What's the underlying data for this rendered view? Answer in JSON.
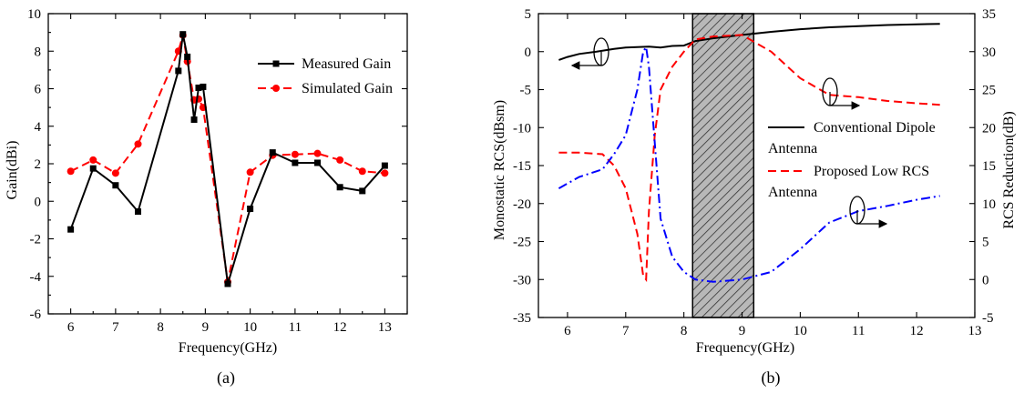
{
  "figure": {
    "panel_a_label": "(a)",
    "panel_b_label": "(b)"
  },
  "colors": {
    "measured": "#000000",
    "simulated": "#ff0000",
    "conventional": "#000000",
    "proposed": "#ff0000",
    "reduction": "#0000ff",
    "hatch_band": "#bdbdbd"
  },
  "chart_data": [
    {
      "type": "line",
      "panel": "(a)",
      "xlabel": "Frequency(GHz)",
      "ylabel": "Gain(dBi)",
      "xlim": [
        5.5,
        13.5
      ],
      "ylim": [
        -6,
        10
      ],
      "xticks": [
        "6",
        "7",
        "8",
        "9",
        "10",
        "11",
        "12",
        "13"
      ],
      "yticks": [
        "-6",
        "-4",
        "-2",
        "0",
        "2",
        "4",
        "6",
        "8",
        "10"
      ],
      "grid": false,
      "legend": "top-right",
      "series": [
        {
          "name": "Measured Gain",
          "marker": "square",
          "style": "solid",
          "x": [
            6,
            6.5,
            7,
            7.5,
            8.4,
            8.5,
            8.6,
            8.75,
            8.85,
            8.95,
            9.5,
            10,
            10.5,
            11,
            11.5,
            12,
            12.5,
            13
          ],
          "y": [
            -1.5,
            1.75,
            0.85,
            -0.55,
            6.95,
            8.9,
            7.7,
            4.35,
            6.05,
            6.1,
            -4.4,
            -0.4,
            2.6,
            2.05,
            2.05,
            0.75,
            0.55,
            1.9
          ]
        },
        {
          "name": "Simulated Gain",
          "marker": "circle",
          "style": "dashed",
          "x": [
            6,
            6.5,
            7,
            7.5,
            8.4,
            8.5,
            8.6,
            8.75,
            8.85,
            8.95,
            9.5,
            10,
            10.5,
            11,
            11.5,
            12,
            12.5,
            13
          ],
          "y": [
            1.6,
            2.2,
            1.5,
            3.05,
            8.0,
            8.85,
            7.45,
            5.4,
            5.45,
            5.0,
            -4.3,
            1.55,
            2.45,
            2.5,
            2.55,
            2.2,
            1.6,
            1.5
          ]
        }
      ]
    },
    {
      "type": "line",
      "panel": "(b)",
      "xlabel": "Frequency(GHz)",
      "ylabel": "Monostatic RCS(dBsm)",
      "y2label": "RCS Reduction(dB)",
      "xlim": [
        5.5,
        13
      ],
      "ylim": [
        -35,
        5
      ],
      "y2lim": [
        -5,
        35
      ],
      "xticks": [
        "6",
        "7",
        "8",
        "9",
        "10",
        "11",
        "12",
        "13"
      ],
      "yticks": [
        "-35",
        "-30",
        "-25",
        "-20",
        "-15",
        "-10",
        "-5",
        "0",
        "5"
      ],
      "y2ticks": [
        "-5",
        "0",
        "5",
        "10",
        "15",
        "20",
        "25",
        "30",
        "35"
      ],
      "grid": false,
      "legend": "right",
      "highlight_band": [
        8.15,
        9.2
      ],
      "series": [
        {
          "name": "Conventional Dipole Antenna",
          "legend_lines": [
            "Conventional Dipole",
            "Antenna"
          ],
          "style": "solid",
          "axis": "left",
          "x": [
            5.85,
            6.0,
            6.2,
            6.5,
            6.8,
            7.0,
            7.2,
            7.4,
            7.6,
            7.8,
            8.0,
            8.2,
            8.5,
            9.0,
            9.5,
            10.0,
            10.5,
            11.0,
            11.5,
            12.0,
            12.4
          ],
          "y": [
            -1.1,
            -0.7,
            -0.3,
            0.0,
            0.35,
            0.55,
            0.6,
            0.65,
            0.55,
            0.75,
            0.8,
            1.4,
            1.75,
            2.2,
            2.6,
            2.95,
            3.2,
            3.35,
            3.5,
            3.6,
            3.65
          ]
        },
        {
          "name": "Proposed Low RCS Antenna",
          "legend_lines": [
            "Proposed Low RCS",
            "Antenna"
          ],
          "style": "dashed",
          "axis": "left",
          "x": [
            5.85,
            6.2,
            6.6,
            6.8,
            7.0,
            7.2,
            7.3,
            7.35,
            7.4,
            7.5,
            7.6,
            7.8,
            8.0,
            8.2,
            8.5,
            9.0,
            9.5,
            10.0,
            10.5,
            11.0,
            11.5,
            12.0,
            12.4
          ],
          "y": [
            -13.3,
            -13.3,
            -13.5,
            -15.0,
            -18.0,
            -24.0,
            -29.5,
            -30.0,
            -21.0,
            -11.0,
            -5.0,
            -2.0,
            0.0,
            1.6,
            2.0,
            2.2,
            0.0,
            -3.5,
            -5.7,
            -6.0,
            -6.5,
            -6.8,
            -7.0
          ]
        },
        {
          "name": "RCS Reduction",
          "style": "dashdot",
          "axis": "right",
          "x": [
            5.85,
            6.2,
            6.6,
            6.8,
            7.0,
            7.2,
            7.3,
            7.35,
            7.4,
            7.5,
            7.6,
            7.8,
            8.0,
            8.2,
            8.5,
            9.0,
            9.5,
            10.0,
            10.5,
            11.0,
            11.5,
            12.0,
            12.4
          ],
          "y": [
            12.0,
            13.5,
            14.5,
            16.5,
            19.0,
            25.0,
            30.0,
            30.6,
            28.0,
            18.0,
            8.0,
            3.0,
            1.0,
            0.0,
            -0.3,
            0.0,
            1.0,
            4.0,
            7.5,
            9.0,
            9.7,
            10.5,
            11.0
          ]
        }
      ]
    }
  ]
}
